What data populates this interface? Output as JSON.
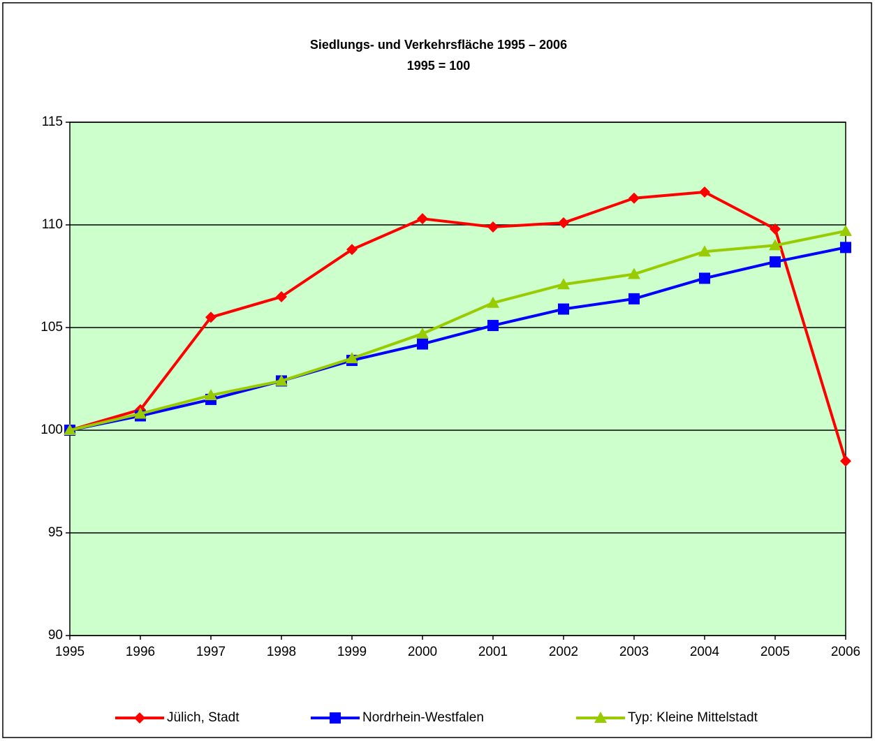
{
  "chart_data": {
    "type": "line",
    "title": "Siedlungs- und Verkehrsfläche 1995 – 2006",
    "subtitle": "1995 = 100",
    "categories": [
      "1995",
      "1996",
      "1997",
      "1998",
      "1999",
      "2000",
      "2001",
      "2002",
      "2003",
      "2004",
      "2005",
      "2006"
    ],
    "series": [
      {
        "name": "Jülich, Stadt",
        "color": "#ff0000",
        "marker": "diamond",
        "values": [
          100,
          101.0,
          105.5,
          106.5,
          108.8,
          110.3,
          109.9,
          110.1,
          111.3,
          111.6,
          109.8,
          98.5
        ]
      },
      {
        "name": "Nordrhein-Westfalen",
        "color": "#0000ff",
        "marker": "square",
        "values": [
          100,
          100.7,
          101.5,
          102.4,
          103.4,
          104.2,
          105.1,
          105.9,
          106.4,
          107.4,
          108.2,
          108.9
        ]
      },
      {
        "name": "Typ: Kleine Mittelstadt",
        "color": "#99cc00",
        "marker": "triangle",
        "values": [
          100,
          100.8,
          101.7,
          102.4,
          103.5,
          104.7,
          106.2,
          107.1,
          107.6,
          108.7,
          109.0,
          109.7
        ]
      }
    ],
    "ylim": [
      90,
      115
    ],
    "yticks": [
      90,
      95,
      100,
      105,
      110,
      115
    ],
    "grid": true,
    "legend": "bottom",
    "plot_background": "#ccffcc"
  }
}
